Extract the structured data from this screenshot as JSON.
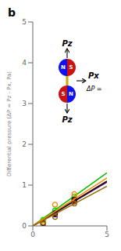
{
  "chart_data": {
    "type": "scatter",
    "title": "b",
    "ylabel": "Differential pressure (ΔP = Pz - Px, Pa)",
    "xlim": [
      0,
      5
    ],
    "ylim": [
      0,
      5
    ],
    "xticks": [
      0,
      5
    ],
    "yticks": [
      0,
      1,
      2,
      3,
      4,
      5
    ],
    "grid": false,
    "annotations": [
      "N",
      "S",
      "S",
      "N",
      "Pz",
      "Pz",
      "Px",
      "ΔP ="
    ],
    "series": [
      {
        "type": "line",
        "color": "#00bb00",
        "line_style": "solid",
        "x": [
          0,
          5
        ],
        "values": [
          0,
          1.3
        ]
      },
      {
        "type": "scatter",
        "color": "#00dd00",
        "marker": "circle",
        "x": [
          0.7,
          1.5,
          2.8
        ],
        "values": [
          0.15,
          0.38,
          0.72
        ]
      },
      {
        "type": "line",
        "color": "#0000cc",
        "line_style": "solid",
        "x": [
          0,
          5
        ],
        "values": [
          0,
          1.075
        ]
      },
      {
        "type": "scatter",
        "color": "#0000cc",
        "marker": "circle",
        "x": [
          0.7,
          1.5,
          2.8
        ],
        "values": [
          0.06,
          0.28,
          0.6
        ]
      },
      {
        "type": "line",
        "color": "#cc0000",
        "line_style": "solid",
        "x": [
          0,
          5
        ],
        "values": [
          0,
          1.09
        ]
      },
      {
        "type": "scatter",
        "color": "#cc0000",
        "marker": "circle",
        "x": [
          0.7,
          1.5,
          2.8
        ],
        "values": [
          0.06,
          0.3,
          0.62
        ]
      },
      {
        "type": "line",
        "color": "#111111",
        "line_style": "solid",
        "x": [
          0,
          5
        ],
        "values": [
          0,
          1.1
        ]
      },
      {
        "type": "scatter",
        "color": "#111111",
        "marker": "circle",
        "x": [
          0.7,
          1.5,
          2.8
        ],
        "values": [
          0.07,
          0.31,
          0.65
        ]
      },
      {
        "type": "line",
        "color": "#ff8800",
        "line_style": "solid",
        "x": [
          0,
          5
        ],
        "values": [
          0,
          1.175
        ]
      },
      {
        "type": "scatter",
        "color": "#ff8800",
        "marker": "circle",
        "x": [
          0.7,
          1.5,
          2.8
        ],
        "values": [
          0.1,
          0.52,
          0.78
        ]
      },
      {
        "type": "line",
        "color": "#996600",
        "line_style": "solid",
        "x": [
          0,
          5
        ],
        "values": [
          0,
          0.975
        ]
      },
      {
        "type": "scatter",
        "color": "#996600",
        "marker": "circle",
        "x": [
          0.7,
          1.5,
          2.8
        ],
        "values": [
          0.04,
          0.22,
          0.55
        ]
      }
    ]
  }
}
